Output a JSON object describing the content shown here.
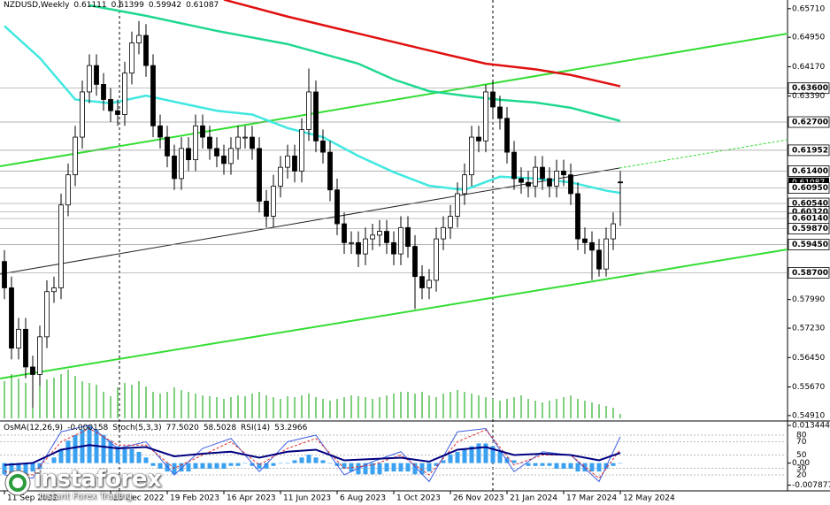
{
  "chart_data": {
    "type": "candlestick",
    "title": "NZDUSD,Weekly",
    "ylim": [
      0.5479,
      0.6594
    ],
    "yticks": [
      {
        "value": 0.6571,
        "label": "0.65710"
      },
      {
        "value": 0.6495,
        "label": "0.64950"
      },
      {
        "value": 0.6417,
        "label": "0.64170"
      },
      {
        "value": 0.636,
        "label": "0.63600",
        "level": true
      },
      {
        "value": 0.6339,
        "label": "0.63390"
      },
      {
        "value": 0.627,
        "label": "0.62700",
        "level": true
      },
      {
        "value": 0.61952,
        "label": "0.61952",
        "level": true
      },
      {
        "value": 0.614,
        "label": "0.61400",
        "level": true
      },
      {
        "value": 0.61087,
        "label": "0.61087",
        "current": true
      },
      {
        "value": 0.6095,
        "label": "0.60950",
        "level": true
      },
      {
        "value": 0.6054,
        "label": "0.60540",
        "level": true
      },
      {
        "value": 0.6032,
        "label": "0.60320",
        "level": true
      },
      {
        "value": 0.6014,
        "label": "0.60140",
        "level": true
      },
      {
        "value": 0.5987,
        "label": "0.59870",
        "level": true
      },
      {
        "value": 0.5945,
        "label": "0.59450",
        "level": true
      },
      {
        "value": 0.587,
        "label": "0.58700",
        "level": true
      },
      {
        "value": 0.5799,
        "label": "0.57990"
      },
      {
        "value": 0.5723,
        "label": "0.57230"
      },
      {
        "value": 0.5645,
        "label": "0.56450"
      },
      {
        "value": 0.5567,
        "label": "0.55670"
      },
      {
        "value": 0.5491,
        "label": "0.54910"
      }
    ],
    "xticks": [
      {
        "value": 0,
        "label": "11 Sep 2022"
      },
      {
        "value": 15,
        "label": "25 Dec 2022"
      },
      {
        "value": 23,
        "label": "19 Feb 2023"
      },
      {
        "value": 31,
        "label": "16 Apr 2023"
      },
      {
        "value": 39,
        "label": "11 Jun 2023"
      },
      {
        "value": 47,
        "label": "6 Aug 2023"
      },
      {
        "value": 55,
        "label": "1 Oct 2023"
      },
      {
        "value": 63,
        "label": "26 Nov 2023"
      },
      {
        "value": 71,
        "label": "21 Jan 2024"
      },
      {
        "value": 79,
        "label": "17 Mar 2024"
      },
      {
        "value": 87,
        "label": "12 May 2024"
      }
    ],
    "open": [
      0.59,
      0.583,
      0.567,
      0.572,
      0.562,
      0.56,
      0.57,
      0.582,
      0.583,
      0.605,
      0.613,
      0.623,
      0.635,
      0.642,
      0.637,
      0.633,
      0.63,
      0.629,
      0.64,
      0.648,
      0.65,
      0.642,
      0.626,
      0.623,
      0.618,
      0.612,
      0.62,
      0.617,
      0.626,
      0.623,
      0.62,
      0.618,
      0.616,
      0.62,
      0.623,
      0.623,
      0.62,
      0.606,
      0.602,
      0.61,
      0.615,
      0.618,
      0.614,
      0.625,
      0.635,
      0.622,
      0.619,
      0.609,
      0.6,
      0.595,
      0.595,
      0.592,
      0.596,
      0.597,
      0.598,
      0.595,
      0.592,
      0.599,
      0.594,
      0.586,
      0.583,
      0.585,
      0.596,
      0.599,
      0.602,
      0.608,
      0.613,
      0.623,
      0.622,
      0.635,
      0.631,
      0.628,
      0.619,
      0.612,
      0.611,
      0.61,
      0.615,
      0.612,
      0.61,
      0.614,
      0.613,
      0.608,
      0.596,
      0.595,
      0.593,
      0.588,
      0.596,
      0.61111
    ],
    "high": [
      0.593,
      0.586,
      0.575,
      0.575,
      0.565,
      0.573,
      0.585,
      0.586,
      0.608,
      0.616,
      0.626,
      0.638,
      0.645,
      0.645,
      0.64,
      0.636,
      0.633,
      0.643,
      0.651,
      0.6538,
      0.653,
      0.645,
      0.629,
      0.626,
      0.621,
      0.623,
      0.623,
      0.629,
      0.629,
      0.626,
      0.623,
      0.621,
      0.623,
      0.626,
      0.626,
      0.626,
      0.623,
      0.609,
      0.613,
      0.618,
      0.621,
      0.621,
      0.628,
      0.6412,
      0.638,
      0.625,
      0.622,
      0.612,
      0.603,
      0.598,
      0.598,
      0.599,
      0.6,
      0.601,
      0.601,
      0.598,
      0.602,
      0.602,
      0.597,
      0.589,
      0.588,
      0.599,
      0.602,
      0.605,
      0.611,
      0.616,
      0.626,
      0.626,
      0.6369,
      0.638,
      0.634,
      0.631,
      0.622,
      0.615,
      0.614,
      0.618,
      0.618,
      0.615,
      0.617,
      0.617,
      0.616,
      0.611,
      0.599,
      0.598,
      0.596,
      0.599,
      0.603,
      0.61399
    ],
    "low": [
      0.58,
      0.564,
      0.564,
      0.559,
      0.5512,
      0.557,
      0.567,
      0.579,
      0.58,
      0.602,
      0.61,
      0.62,
      0.632,
      0.634,
      0.63,
      0.627,
      0.626,
      0.626,
      0.637,
      0.645,
      0.639,
      0.623,
      0.62,
      0.615,
      0.609,
      0.609,
      0.614,
      0.614,
      0.62,
      0.617,
      0.615,
      0.613,
      0.613,
      0.617,
      0.62,
      0.617,
      0.603,
      0.599,
      0.599,
      0.607,
      0.612,
      0.611,
      0.611,
      0.622,
      0.619,
      0.616,
      0.606,
      0.597,
      0.592,
      0.592,
      0.5885,
      0.589,
      0.593,
      0.594,
      0.592,
      0.589,
      0.589,
      0.591,
      0.5774,
      0.58,
      0.58,
      0.582,
      0.593,
      0.596,
      0.599,
      0.605,
      0.61,
      0.619,
      0.619,
      0.628,
      0.625,
      0.616,
      0.609,
      0.608,
      0.607,
      0.607,
      0.609,
      0.607,
      0.607,
      0.61,
      0.605,
      0.593,
      0.592,
      0.5851,
      0.586,
      0.586,
      0.593,
      0.59942
    ],
    "close": [
      0.583,
      0.567,
      0.572,
      0.562,
      0.56,
      0.57,
      0.582,
      0.583,
      0.605,
      0.613,
      0.623,
      0.635,
      0.642,
      0.637,
      0.633,
      0.63,
      0.629,
      0.64,
      0.648,
      0.65,
      0.642,
      0.626,
      0.623,
      0.618,
      0.612,
      0.62,
      0.617,
      0.626,
      0.623,
      0.62,
      0.618,
      0.616,
      0.62,
      0.623,
      0.623,
      0.62,
      0.606,
      0.602,
      0.61,
      0.615,
      0.618,
      0.614,
      0.625,
      0.635,
      0.622,
      0.619,
      0.609,
      0.6,
      0.595,
      0.595,
      0.592,
      0.596,
      0.597,
      0.598,
      0.595,
      0.592,
      0.599,
      0.594,
      0.586,
      0.583,
      0.585,
      0.596,
      0.599,
      0.602,
      0.608,
      0.613,
      0.623,
      0.622,
      0.635,
      0.631,
      0.628,
      0.619,
      0.612,
      0.611,
      0.61,
      0.615,
      0.612,
      0.61,
      0.614,
      0.613,
      0.608,
      0.596,
      0.595,
      0.593,
      0.588,
      0.596,
      0.6,
      0.61087
    ],
    "volume": [
      42,
      50,
      45,
      40,
      48,
      52,
      44,
      46,
      50,
      55,
      48,
      42,
      40,
      38,
      30,
      25,
      35,
      40,
      38,
      42,
      36,
      30,
      28,
      30,
      35,
      32,
      30,
      28,
      26,
      25,
      24,
      22,
      24,
      26,
      25,
      28,
      30,
      26,
      24,
      22,
      25,
      24,
      26,
      28,
      24,
      22,
      20,
      22,
      24,
      26,
      25,
      24,
      22,
      24,
      26,
      28,
      30,
      30,
      28,
      30,
      26,
      24,
      28,
      30,
      32,
      30,
      28,
      26,
      24,
      22,
      20,
      22,
      24,
      26,
      22,
      20,
      18,
      20,
      22,
      24,
      26,
      22,
      20,
      18,
      16,
      14,
      12,
      5
    ],
    "volume_color": "#00a000",
    "lines": [
      {
        "color": "#40e8e0",
        "x": [
          0,
          5,
          10,
          15,
          20,
          25,
          30,
          35,
          40,
          45,
          50,
          55,
          60,
          65,
          70,
          75,
          80,
          85,
          87
        ],
        "values": [
          0.6525,
          0.644,
          0.633,
          0.632,
          0.634,
          0.632,
          0.63,
          0.629,
          0.6254,
          0.623,
          0.618,
          0.6137,
          0.6101,
          0.609,
          0.6125,
          0.612,
          0.611,
          0.6088,
          0.6082
        ]
      },
      {
        "color": "#20d890",
        "x": [
          12,
          20,
          30,
          40,
          50,
          55,
          60,
          65,
          70,
          75,
          80,
          87
        ],
        "values": [
          0.658,
          0.6552,
          0.6512,
          0.6477,
          0.6425,
          0.6383,
          0.6352,
          0.634,
          0.6329,
          0.6322,
          0.6308,
          0.6273
        ]
      },
      {
        "color": "#e01010",
        "x": [
          31,
          40,
          50,
          60,
          68,
          75,
          80,
          87
        ],
        "values": [
          0.6595,
          0.655,
          0.6505,
          0.646,
          0.6425,
          0.641,
          0.6395,
          0.6365
        ]
      }
    ],
    "oscillator": {
      "osma_name": "OsMA(12,26,9)",
      "stoch_name": "Stoch(5,3,3)",
      "rsi_name": "RSI(14)",
      "osma_lim": [
        -0.0099,
        0.0147
      ],
      "osma_ticks": [
        {
          "value": 0.013444,
          "label": "0.013444"
        },
        {
          "value": 0,
          "label": "0.00"
        },
        {
          "value": -0.007877,
          "label": "-0.007877"
        }
      ],
      "ylim": [
        -4,
        100
      ],
      "yticks": [
        80,
        70,
        50,
        30,
        20
      ],
      "osma_color": "#3aa0f0",
      "osma": [
        -0.004,
        -0.005,
        -0.005,
        -0.004,
        -0.003,
        -0.002,
        0,
        0.002,
        0.005,
        0.008,
        0.01,
        0.012,
        0.013,
        0.012,
        0.01,
        0.008,
        0.006,
        0.005,
        0.005,
        0.004,
        0.002,
        -0.001,
        -0.002,
        -0.003,
        -0.004,
        -0.003,
        -0.003,
        -0.002,
        -0.002,
        -0.002,
        -0.002,
        -0.002,
        -0.001,
        -0.001,
        0,
        -0.001,
        -0.002,
        -0.002,
        -0.001,
        0,
        0,
        0.001,
        0.002,
        0.003,
        0.002,
        0.001,
        0,
        -0.001,
        -0.002,
        -0.003,
        -0.004,
        -0.004,
        -0.004,
        -0.004,
        -0.003,
        -0.003,
        -0.003,
        -0.003,
        -0.004,
        -0.004,
        -0.003,
        -0.001,
        0.001,
        0.003,
        0.004,
        0.005,
        0.006,
        0.007,
        0.007,
        0.006,
        0.004,
        0.002,
        0.001,
        0,
        -0.001,
        -0.001,
        -0.001,
        -0.001,
        -0.002,
        -0.002,
        -0.002,
        -0.003,
        -0.003,
        -0.003,
        -0.003,
        -0.002,
        -0.001,
        -0.000158
      ],
      "x": [
        0,
        4,
        8,
        12,
        16,
        20,
        24,
        28,
        32,
        36,
        40,
        44,
        48,
        52,
        56,
        60,
        64,
        68,
        72,
        76,
        80,
        84,
        87
      ],
      "series": [
        {
          "color": "#4060e0",
          "values": [
            20,
            15,
            85,
            95,
            60,
            70,
            20,
            60,
            75,
            25,
            70,
            80,
            20,
            40,
            55,
            10,
            85,
            90,
            25,
            55,
            50,
            10,
            77.502
          ],
          "value_label": "77.5020"
        },
        {
          "color": "#e03030",
          "dashed": true,
          "values": [
            25,
            20,
            70,
            90,
            65,
            65,
            30,
            50,
            70,
            35,
            60,
            75,
            30,
            35,
            50,
            20,
            70,
            88,
            35,
            50,
            50,
            15,
            58.5028
          ],
          "value_label": "58.5028"
        },
        {
          "color": "#000080",
          "width": 2,
          "values": [
            35,
            38,
            58,
            65,
            60,
            62,
            48,
            52,
            55,
            46,
            55,
            58,
            42,
            44,
            46,
            40,
            58,
            62,
            50,
            52,
            50,
            42,
            53.2966
          ],
          "value_label": "53.2966"
        }
      ]
    },
    "logo": {
      "name": "instaforex",
      "tagline": "Instant Forex Trading"
    }
  }
}
